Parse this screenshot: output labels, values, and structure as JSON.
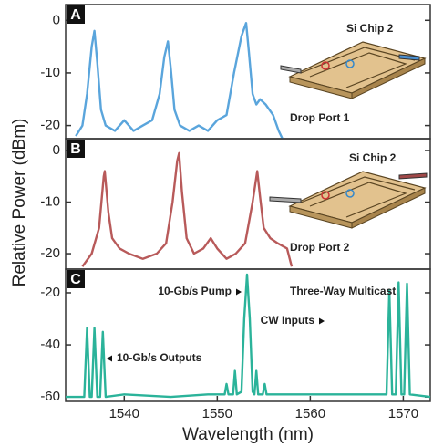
{
  "chart_data": [
    {
      "type": "line",
      "panel_label": "A",
      "xlim": [
        1533.7,
        1572.9
      ],
      "ylim": [
        -22.5,
        3
      ],
      "yticks": [
        0,
        -10,
        -20
      ],
      "x": [
        1534.8,
        1535.5,
        1536.0,
        1536.5,
        1536.8,
        1537.1,
        1537.5,
        1538,
        1539,
        1540,
        1541,
        1542,
        1543,
        1543.8,
        1544.3,
        1544.7,
        1545.0,
        1545.4,
        1546,
        1547,
        1548,
        1549,
        1550,
        1551,
        1551.8,
        1552.6,
        1553.1,
        1553.4,
        1553.8,
        1554.2,
        1554.6,
        1555.2,
        1556,
        1556.6,
        1557
      ],
      "series": [
        {
          "color": "#5aa5dc",
          "values": [
            -22,
            -20,
            -14,
            -5,
            -2,
            -8,
            -17,
            -20,
            -21,
            -19,
            -21,
            -20,
            -19,
            -14,
            -7,
            -4,
            -9,
            -17,
            -20,
            -21,
            -20,
            -21,
            -19,
            -18,
            -10,
            -3,
            -0.5,
            -6,
            -14,
            -16,
            -15,
            -16,
            -18,
            -21,
            -22.5
          ]
        }
      ],
      "annotations": [
        "Si Chip 2",
        "Drop Port 1"
      ]
    },
    {
      "type": "line",
      "panel_label": "B",
      "ylabel": "Relative Power (dBm)",
      "xlim": [
        1533.7,
        1572.9
      ],
      "ylim": [
        -23,
        2.3
      ],
      "yticks": [
        0,
        -10,
        -20
      ],
      "x": [
        1535.5,
        1536.5,
        1537.3,
        1537.8,
        1537.9,
        1538.3,
        1538.7,
        1539.5,
        1540.5,
        1542,
        1543.5,
        1544.5,
        1545.2,
        1545.7,
        1545.9,
        1546.2,
        1546.7,
        1547.5,
        1548.5,
        1549.3,
        1550,
        1551,
        1552,
        1553,
        1553.8,
        1554.3,
        1554.6,
        1555,
        1555.7,
        1556.5,
        1557.5,
        1558
      ],
      "series": [
        {
          "color": "#b85a5a",
          "values": [
            -22.5,
            -20,
            -15,
            -5,
            -4,
            -12,
            -17,
            -19,
            -20,
            -21,
            -20,
            -18,
            -10,
            -2,
            -0.5,
            -8,
            -17,
            -20,
            -19,
            -17,
            -19,
            -21,
            -20,
            -18,
            -10,
            -4,
            -9,
            -15,
            -17,
            -18,
            -19,
            -22.5
          ]
        }
      ],
      "annotations": [
        "Si Chip 2",
        "Drop Port 2"
      ]
    },
    {
      "type": "line",
      "panel_label": "C",
      "xlabel": "Wavelength (nm)",
      "xlim": [
        1533.7,
        1572.9
      ],
      "ylim": [
        -61.7,
        -10.9
      ],
      "yticks": [
        -20,
        -40,
        -60
      ],
      "xticks": [
        1540,
        1550,
        1560,
        1570
      ],
      "x": [
        1533.7,
        1535.7,
        1536.0,
        1536.3,
        1536.5,
        1536.8,
        1537.1,
        1537.4,
        1537.7,
        1538.0,
        1540,
        1545,
        1549,
        1550.8,
        1551.0,
        1551.2,
        1551.7,
        1551.9,
        1552.1,
        1552.6,
        1552.9,
        1553.2,
        1553.5,
        1553.8,
        1554.0,
        1554.2,
        1554.4,
        1554.9,
        1555.1,
        1555.3,
        1560,
        1565,
        1568.2,
        1568.5,
        1568.8,
        1569.2,
        1569.5,
        1569.8,
        1570.1,
        1570.4,
        1570.7,
        1572.9
      ],
      "series": [
        {
          "color": "#2bb39a",
          "values": [
            -60,
            -60,
            -33.5,
            -60,
            -60,
            -33.5,
            -60,
            -60,
            -35,
            -60,
            -59,
            -60,
            -59,
            -59,
            -55,
            -59,
            -59,
            -50,
            -59,
            -58,
            -30,
            -13,
            -30,
            -58,
            -59,
            -50,
            -59,
            -59,
            -55,
            -59,
            -59,
            -59,
            -59,
            -19,
            -59,
            -59,
            -16,
            -59,
            -59,
            -16.5,
            -59,
            -60
          ]
        }
      ],
      "annotations": [
        "10-Gb/s Pump",
        "Three-Way Multicast",
        "CW Inputs",
        "10-Gb/s Outputs"
      ]
    }
  ]
}
